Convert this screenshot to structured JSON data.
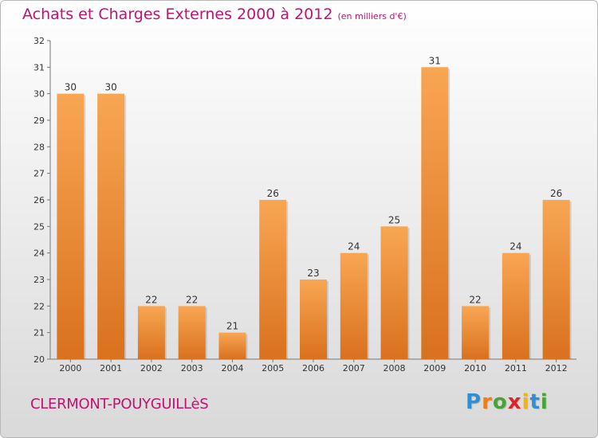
{
  "title": "Achats et Charges Externes 2000 à 2012",
  "unit_label": "(en milliers d'€)",
  "commune": "CLERMONT-POUYGUILLèS",
  "logo": {
    "letters": [
      "P",
      "r",
      "o",
      "x",
      "i",
      "t",
      "i"
    ],
    "colors": [
      "#2e8fd6",
      "#ef7d1a",
      "#49a533",
      "#d8252a",
      "#f0b41a",
      "#2e8fd6",
      "#49a533"
    ]
  },
  "colors": {
    "title": "#c2126f",
    "bar_top": "#f8a653",
    "bar_bottom": "#d9711d"
  },
  "chart_data": {
    "type": "bar",
    "title": "Achats et Charges Externes 2000 à 2012",
    "categories": [
      "2000",
      "2001",
      "2002",
      "2003",
      "2004",
      "2005",
      "2006",
      "2007",
      "2008",
      "2009",
      "2010",
      "2011",
      "2012"
    ],
    "values": [
      30,
      30,
      22,
      22,
      21,
      26,
      23,
      24,
      25,
      31,
      22,
      24,
      26
    ],
    "ylim": [
      20,
      32
    ],
    "yticks": [
      20,
      21,
      22,
      23,
      24,
      25,
      26,
      27,
      28,
      29,
      30,
      31,
      32
    ],
    "grid": false,
    "legend": "none"
  }
}
